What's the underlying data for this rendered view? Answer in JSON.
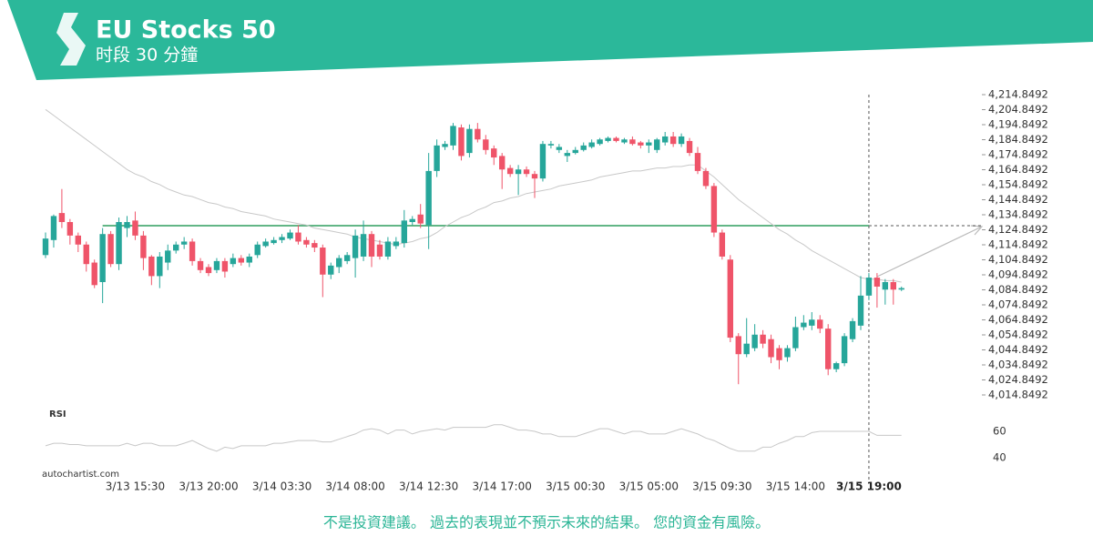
{
  "header": {
    "title": "EU Stocks 50",
    "subtitle": "时段 30 分鐘"
  },
  "chart_data": {
    "type": "candlestick",
    "categories": [
      null,
      null,
      null,
      null,
      null,
      null,
      null,
      null,
      null,
      null,
      null,
      "3/13 15:30",
      null,
      null,
      null,
      null,
      null,
      null,
      null,
      null,
      "3/13 20:00",
      null,
      null,
      null,
      null,
      null,
      null,
      null,
      null,
      "3/14 03:30",
      null,
      null,
      null,
      null,
      null,
      null,
      null,
      null,
      "3/14 08:00",
      null,
      null,
      null,
      null,
      null,
      null,
      null,
      null,
      "3/14 12:30",
      null,
      null,
      null,
      null,
      null,
      null,
      null,
      null,
      "3/14 17:00",
      null,
      null,
      null,
      null,
      null,
      null,
      null,
      null,
      "3/15 00:30",
      null,
      null,
      null,
      null,
      null,
      null,
      null,
      null,
      "3/15 05:00",
      null,
      null,
      null,
      null,
      null,
      null,
      null,
      null,
      "3/15 09:30",
      null,
      null,
      null,
      null,
      null,
      null,
      null,
      null,
      "3/15 14:00",
      null,
      null,
      null,
      null,
      null,
      null,
      null,
      null,
      "3/15 19:00",
      null,
      null,
      null,
      null
    ],
    "open": [
      4108,
      4118,
      4136,
      4130,
      4121,
      4115,
      4103,
      4090,
      4122,
      4102,
      4126,
      4131,
      4121,
      4107,
      4094,
      4103,
      4111,
      4115,
      4117,
      4104,
      4100,
      4098,
      4104,
      4102,
      4106,
      4103,
      4108,
      4114,
      4116,
      4118,
      4119,
      4123,
      4118,
      4116,
      4113,
      4095,
      4100,
      4104,
      4106,
      4107,
      4122,
      4115,
      4107,
      4114,
      4116,
      4130,
      4135,
      4128,
      4164,
      4180,
      4181,
      4193,
      4176,
      4192,
      4185,
      4179,
      4174,
      4166,
      4162,
      4165,
      4162,
      4159,
      4181,
      4178,
      4174,
      4176,
      4178,
      4180,
      4182,
      4184,
      4186,
      4183,
      4185,
      4183,
      4181,
      4178,
      4183,
      4187,
      4182,
      4184,
      4176,
      4164,
      4154,
      4123,
      4105,
      4054,
      4042,
      4046,
      4055,
      4052,
      4046,
      4040,
      4046,
      4060,
      4061,
      4065,
      4059,
      4032,
      4036,
      4052,
      4061,
      4081,
      4093,
      4085,
      4090,
      4085
    ],
    "high": [
      4123,
      4135,
      4152,
      4132,
      4123,
      4117,
      4105,
      4126,
      4124,
      4133,
      4134,
      4137,
      4124,
      4108,
      4110,
      4115,
      4117,
      4120,
      4119,
      4106,
      4102,
      4106,
      4106,
      4109,
      4108,
      4109,
      4117,
      4119,
      4120,
      4122,
      4125,
      4128,
      4120,
      4118,
      4115,
      4103,
      4108,
      4110,
      4125,
      4131,
      4124,
      4118,
      4120,
      4120,
      4138,
      4134,
      4142,
      4176,
      4185,
      4184,
      4196,
      4195,
      4195,
      4196,
      4188,
      4181,
      4176,
      4168,
      4168,
      4167,
      4164,
      4184,
      4184,
      4182,
      4178,
      4180,
      4183,
      4185,
      4186,
      4187,
      4187,
      4186,
      4187,
      4184,
      4185,
      4186,
      4190,
      4190,
      4189,
      4186,
      4180,
      4166,
      4156,
      4125,
      4108,
      4056,
      4066,
      4062,
      4058,
      4055,
      4048,
      4048,
      4067,
      4068,
      4070,
      4068,
      4062,
      4037,
      4056,
      4066,
      4094,
      4096,
      4096,
      4092,
      4092,
      4087
    ],
    "low": [
      4106,
      4113,
      4126,
      4115,
      4110,
      4097,
      4086,
      4076,
      4100,
      4098,
      4120,
      4118,
      4098,
      4088,
      4086,
      4098,
      4109,
      4112,
      4101,
      4096,
      4094,
      4096,
      4093,
      4100,
      4101,
      4100,
      4106,
      4113,
      4115,
      4116,
      4118,
      4115,
      4113,
      4110,
      4080,
      4092,
      4096,
      4102,
      4093,
      4104,
      4100,
      4105,
      4105,
      4112,
      4113,
      4128,
      4126,
      4112,
      4160,
      4178,
      4178,
      4171,
      4173,
      4183,
      4175,
      4168,
      4152,
      4160,
      4148,
      4160,
      4146,
      4157,
      4179,
      4176,
      4170,
      4175,
      4177,
      4179,
      4181,
      4183,
      4183,
      4182,
      4181,
      4179,
      4176,
      4176,
      4181,
      4180,
      4180,
      4174,
      4162,
      4152,
      4120,
      4105,
      4050,
      4022,
      4040,
      4044,
      4046,
      4036,
      4032,
      4037,
      4044,
      4058,
      4058,
      4056,
      4028,
      4030,
      4034,
      4050,
      4058,
      4078,
      4073,
      4075,
      4075,
      4084
    ],
    "close": [
      4119,
      4134,
      4130,
      4121,
      4115,
      4102,
      4088,
      4122,
      4102,
      4130,
      4130,
      4121,
      4106,
      4094,
      4107,
      4111,
      4115,
      4117,
      4104,
      4098,
      4096,
      4104,
      4097,
      4106,
      4103,
      4107,
      4115,
      4117,
      4118,
      4120,
      4123,
      4117,
      4115,
      4113,
      4095,
      4101,
      4106,
      4108,
      4121,
      4122,
      4107,
      4107,
      4117,
      4117,
      4131,
      4132,
      4129,
      4164,
      4181,
      4182,
      4194,
      4174,
      4192,
      4185,
      4178,
      4173,
      4165,
      4162,
      4165,
      4162,
      4159,
      4182,
      4182,
      4180,
      4176,
      4178,
      4181,
      4183,
      4185,
      4186,
      4184,
      4185,
      4182,
      4181,
      4183,
      4185,
      4187,
      4182,
      4187,
      4176,
      4164,
      4154,
      4123,
      4107,
      4053,
      4042,
      4049,
      4055,
      4049,
      4040,
      4038,
      4046,
      4060,
      4063,
      4065,
      4059,
      4032,
      4036,
      4054,
      4064,
      4081,
      4093,
      4087,
      4090,
      4085,
      4086
    ],
    "up_color": "#26a69a",
    "down_color": "#ef5469",
    "ma": [
      4205,
      4201,
      4197,
      4193,
      4189,
      4185,
      4181,
      4177,
      4173,
      4169,
      4165,
      4162,
      4160,
      4157,
      4155,
      4152,
      4150,
      4148,
      4147,
      4145,
      4143,
      4142,
      4140,
      4139,
      4137,
      4136,
      4135,
      4134,
      4132,
      4131,
      4130,
      4129,
      4128,
      4126,
      4125,
      4124,
      4123,
      4122,
      4120,
      4119,
      4118,
      4117,
      4116,
      4115,
      4116,
      4117,
      4119,
      4120,
      4123,
      4127,
      4130,
      4133,
      4135,
      4138,
      4140,
      4143,
      4144,
      4146,
      4147,
      4149,
      4150,
      4151,
      4152,
      4154,
      4155,
      4156,
      4157,
      4158,
      4160,
      4161,
      4162,
      4163,
      4164,
      4164,
      4165,
      4166,
      4166,
      4167,
      4167,
      4168,
      4168,
      4164,
      4160,
      4155,
      4150,
      4145,
      4141,
      4137,
      4133,
      4129,
      4125,
      4122,
      4118,
      4115,
      4111,
      4108,
      4105,
      4102,
      4099,
      4096,
      4093,
      4092,
      4092,
      4091,
      4091,
      4090
    ],
    "level": 4127.6,
    "ylim": [
      4014.8492,
      4214.8492
    ],
    "yticks": [
      {
        "value": 4214.8492,
        "label": "4,214.8492"
      },
      {
        "value": 4204.8492,
        "label": "4,204.8492"
      },
      {
        "value": 4194.8492,
        "label": "4,194.8492"
      },
      {
        "value": 4184.8492,
        "label": "4,184.8492"
      },
      {
        "value": 4174.8492,
        "label": "4,174.8492"
      },
      {
        "value": 4164.8492,
        "label": "4,164.8492"
      },
      {
        "value": 4154.8492,
        "label": "4,154.8492"
      },
      {
        "value": 4144.8492,
        "label": "4,144.8492"
      },
      {
        "value": 4134.8492,
        "label": "4,134.8492"
      },
      {
        "value": 4124.8492,
        "label": "4,124.8492"
      },
      {
        "value": 4114.8492,
        "label": "4,114.8492"
      },
      {
        "value": 4104.8492,
        "label": "4,104.8492"
      },
      {
        "value": 4094.8492,
        "label": "4,094.8492"
      },
      {
        "value": 4084.8492,
        "label": "4,084.8492"
      },
      {
        "value": 4074.8492,
        "label": "4,074.8492"
      },
      {
        "value": 4064.8492,
        "label": "4,064.8492"
      },
      {
        "value": 4054.8492,
        "label": "4,054.8492"
      },
      {
        "value": 4044.8492,
        "label": "4,044.8492"
      },
      {
        "value": 4034.8492,
        "label": "4,034.8492"
      },
      {
        "value": 4024.8492,
        "label": "4,024.8492"
      },
      {
        "value": 4014.8492,
        "label": "4,014.8492"
      }
    ],
    "rsi": {
      "label": "RSI",
      "ylim": [
        32,
        70
      ],
      "yticks": [
        40,
        60
      ],
      "values": [
        49,
        51,
        51,
        50,
        50,
        49,
        49,
        49,
        49,
        49,
        51,
        49,
        51,
        51,
        49,
        49,
        49,
        51,
        53,
        50,
        47,
        45,
        48,
        47,
        49,
        49,
        49,
        49,
        51,
        51,
        52,
        53,
        53,
        53,
        52,
        52,
        54,
        56,
        58,
        61,
        62,
        61,
        58,
        61,
        61,
        58,
        60,
        61,
        62,
        61,
        63,
        63,
        63,
        63,
        63,
        65,
        65,
        63,
        61,
        61,
        60,
        58,
        58,
        56,
        56,
        56,
        58,
        60,
        62,
        62,
        60,
        58,
        60,
        60,
        58,
        58,
        58,
        60,
        62,
        60,
        58,
        55,
        53,
        50,
        47,
        45,
        45,
        45,
        48,
        48,
        51,
        53,
        56,
        56,
        59,
        60,
        60,
        60,
        60,
        60,
        60,
        60,
        57,
        57,
        57,
        57
      ]
    }
  },
  "source": "autochartist.com",
  "footer": "不是投資建議。 過去的表現並不預示未來的結果。 您的資金有風險。"
}
